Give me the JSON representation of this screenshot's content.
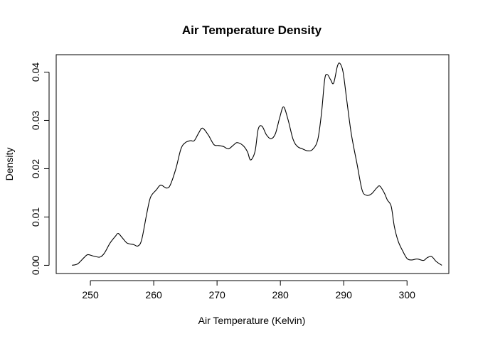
{
  "chart_data": {
    "type": "line",
    "title": "Air Temperature Density",
    "xlabel": "Air Temperature (Kelvin)",
    "ylabel": "Density",
    "xlim": [
      244.6,
      306.6
    ],
    "ylim": [
      -0.0017,
      0.0436
    ],
    "x_ticks": [
      250,
      260,
      270,
      280,
      290,
      300
    ],
    "x_tick_labels": [
      "250",
      "260",
      "270",
      "280",
      "290",
      "300"
    ],
    "y_ticks": [
      0.0,
      0.01,
      0.02,
      0.03,
      0.04
    ],
    "y_tick_labels": [
      "0.00",
      "0.01",
      "0.02",
      "0.03",
      "0.04"
    ],
    "grid": false,
    "legend": "none",
    "series": [
      {
        "color": "#000000",
        "x": [
          247.1,
          248.0,
          249.0,
          249.6,
          250.5,
          251.5,
          252.2,
          253.1,
          254.0,
          254.4,
          255.1,
          255.8,
          256.8,
          257.5,
          258.1,
          258.9,
          259.5,
          260.4,
          261.1,
          262.0,
          262.6,
          263.5,
          264.3,
          265.0,
          265.8,
          266.4,
          267.1,
          267.7,
          268.6,
          269.5,
          270.2,
          271.0,
          271.8,
          272.6,
          273.2,
          274.1,
          274.8,
          275.3,
          276.0,
          276.5,
          277.1,
          277.8,
          278.5,
          279.2,
          279.9,
          280.5,
          281.2,
          282.0,
          282.7,
          283.5,
          284.3,
          285.1,
          285.9,
          286.5,
          287.0,
          287.4,
          287.9,
          288.4,
          289.0,
          289.4,
          289.9,
          290.5,
          291.2,
          292.1,
          292.9,
          293.6,
          294.4,
          295.2,
          295.7,
          296.4,
          296.9,
          297.5,
          298.0,
          298.6,
          299.3,
          300.0,
          300.7,
          301.6,
          302.6,
          303.2,
          303.9,
          304.6,
          305.5
        ],
        "values": [
          0.0,
          0.0003,
          0.0016,
          0.0022,
          0.0019,
          0.0017,
          0.0025,
          0.0046,
          0.0061,
          0.0066,
          0.0056,
          0.0046,
          0.0043,
          0.004,
          0.0053,
          0.0107,
          0.0141,
          0.0156,
          0.0166,
          0.016,
          0.0166,
          0.02,
          0.0241,
          0.0254,
          0.0258,
          0.0258,
          0.0274,
          0.0284,
          0.027,
          0.025,
          0.0248,
          0.0246,
          0.0241,
          0.0249,
          0.0254,
          0.0248,
          0.0235,
          0.0218,
          0.0236,
          0.0282,
          0.0288,
          0.027,
          0.0262,
          0.0272,
          0.0306,
          0.0328,
          0.0302,
          0.0261,
          0.0246,
          0.0241,
          0.0237,
          0.024,
          0.026,
          0.0316,
          0.0385,
          0.0395,
          0.0385,
          0.0377,
          0.0412,
          0.0418,
          0.04,
          0.034,
          0.0272,
          0.021,
          0.0156,
          0.0145,
          0.0148,
          0.016,
          0.0164,
          0.015,
          0.0135,
          0.0122,
          0.008,
          0.005,
          0.003,
          0.0014,
          0.0011,
          0.0013,
          0.001,
          0.0016,
          0.0018,
          0.0008,
          0.0
        ]
      }
    ]
  }
}
